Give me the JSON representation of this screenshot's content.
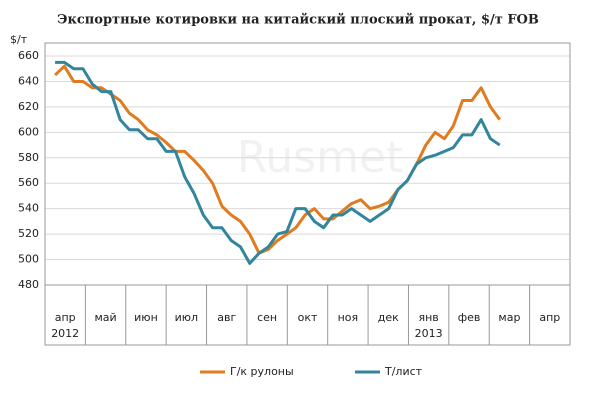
{
  "chart_data": {
    "type": "line",
    "title": "Экспортные котировки на китайский плоский прокат, $/т FOB",
    "y_label": "$/т",
    "watermark": "Rusmet",
    "categories": [
      "апр 2012",
      "май",
      "июн",
      "июл",
      "авг",
      "сен",
      "окт",
      "ноя",
      "дек",
      "янв 2013",
      "фев",
      "мар",
      "апр"
    ],
    "xlim": [
      0,
      13
    ],
    "x": [
      0.25,
      0.48,
      0.71,
      0.94,
      1.17,
      1.4,
      1.63,
      1.86,
      2.09,
      2.31,
      2.54,
      2.77,
      3.0,
      3.23,
      3.46,
      3.69,
      3.92,
      4.15,
      4.38,
      4.61,
      4.84,
      5.07,
      5.3,
      5.53,
      5.76,
      5.99,
      6.21,
      6.44,
      6.67,
      6.9,
      7.13,
      7.36,
      7.59,
      7.82,
      8.05,
      8.28,
      8.51,
      8.74,
      8.97,
      9.2,
      9.43,
      9.66,
      9.89,
      10.11,
      10.34,
      10.57,
      10.8,
      11.03,
      11.26
    ],
    "series": [
      {
        "name": "Г/к рулоны",
        "color": "#e07b1f",
        "values": [
          645,
          652,
          640,
          640,
          635,
          635,
          630,
          625,
          615,
          610,
          602,
          598,
          592,
          585,
          585,
          578,
          570,
          560,
          542,
          535,
          530,
          520,
          505,
          508,
          515,
          520,
          525,
          535,
          540,
          532,
          532,
          538,
          544,
          547,
          540,
          542,
          545,
          555,
          562,
          575,
          590,
          600,
          595,
          605,
          625,
          625,
          635,
          620,
          610
        ]
      },
      {
        "name": "Т/лист",
        "color": "#31859c",
        "values": [
          655,
          655,
          650,
          650,
          638,
          632,
          632,
          610,
          602,
          602,
          595,
          595,
          585,
          585,
          565,
          552,
          535,
          525,
          525,
          515,
          510,
          497,
          505,
          510,
          520,
          522,
          540,
          540,
          530,
          525,
          535,
          535,
          540,
          535,
          530,
          535,
          540,
          555,
          562,
          575,
          580,
          582,
          585,
          588,
          598,
          598,
          610,
          595,
          590
        ]
      }
    ],
    "ylim": [
      480,
      660
    ],
    "yticks": [
      480,
      500,
      520,
      540,
      560,
      580,
      600,
      620,
      640,
      660
    ],
    "grid": true,
    "legend": "bottom"
  }
}
